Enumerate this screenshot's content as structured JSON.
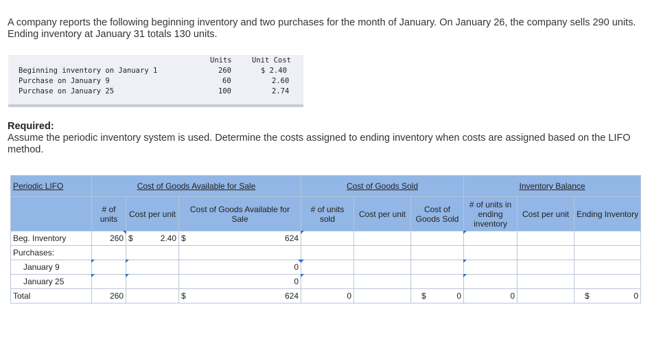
{
  "problem": "A company reports the following beginning inventory and two purchases for the month of January. On January 26, the company sells 290 units. Ending inventory at January 31 totals 130 units.",
  "given": {
    "headers": {
      "units": "Units",
      "unit_cost": "Unit Cost"
    },
    "rows": [
      {
        "label": "Beginning inventory on January 1",
        "units": "260",
        "cost": "$ 2.40"
      },
      {
        "label": "Purchase on January 9",
        "units": "60",
        "cost": "2.60"
      },
      {
        "label": "Purchase on January 25",
        "units": "100",
        "cost": "2.74"
      }
    ]
  },
  "required": {
    "heading": "Required:",
    "text": "Assume the periodic inventory system is used. Determine the costs assigned to ending inventory when costs are assigned based on the LIFO method."
  },
  "table": {
    "title": "Periodic LIFO",
    "groups": {
      "cogas": "Cost of Goods Available for Sale",
      "cogs": "Cost of Goods Sold",
      "balance": "Inventory Balance"
    },
    "cols": {
      "units": "# of units",
      "cost_per_unit": "Cost per unit",
      "cogas": "Cost of Goods Available for Sale",
      "units_sold": "# of units sold",
      "cost_per_unit2": "Cost per unit",
      "cogs": "Cost of Goods Sold",
      "units_ending": "# of units in ending inventory",
      "cost_per_unit3": "Cost per unit",
      "ending": "Ending Inventory"
    },
    "rows": {
      "beg": {
        "label": "Beg. Inventory",
        "units": "260",
        "dollar": "$",
        "cost": "2.40",
        "dollar2": "$",
        "total": "624"
      },
      "purchases": {
        "label": "Purchases:"
      },
      "jan9": {
        "label": "January 9",
        "total": "0"
      },
      "jan25": {
        "label": "January 25",
        "total": "0"
      },
      "total": {
        "label": "Total",
        "units": "260",
        "dollar": "$",
        "total": "624",
        "sold": "0",
        "cogs_dollar": "$",
        "cogs": "0",
        "ending_units": "0",
        "ending_dollar": "$",
        "ending": "0"
      }
    }
  }
}
